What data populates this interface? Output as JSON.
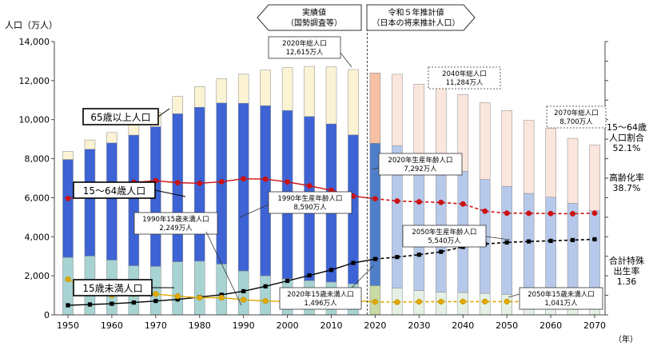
{
  "chart_data": {
    "type": "bar",
    "x": [
      1950,
      1955,
      1960,
      1965,
      1970,
      1975,
      1980,
      1985,
      1990,
      1995,
      2000,
      2005,
      2010,
      2015,
      2020,
      2025,
      2030,
      2035,
      2040,
      2045,
      2050,
      2055,
      2060,
      2065,
      2070
    ],
    "split_year": 2020,
    "series": [
      {
        "name": "15歳未満人口",
        "values": [
          2943,
          3012,
          2807,
          2517,
          2482,
          2722,
          2751,
          2603,
          2249,
          2001,
          1847,
          1752,
          1680,
          1589,
          1496,
          1363,
          1240,
          1169,
          1142,
          1103,
          1041,
          996,
          951,
          906,
          798
        ]
      },
      {
        "name": "15～64歳人口",
        "values": [
          5017,
          5473,
          6000,
          6693,
          7157,
          7581,
          7883,
          8251,
          8590,
          8716,
          8622,
          8409,
          8103,
          7629,
          7292,
          7310,
          6875,
          6722,
          6213,
          5832,
          5540,
          5225,
          5078,
          4808,
          4535
        ]
      },
      {
        "name": "65歳以上人口",
        "values": [
          411,
          475,
          535,
          624,
          739,
          887,
          1065,
          1247,
          1489,
          1826,
          2204,
          2567,
          2925,
          3347,
          3603,
          3653,
          3696,
          3773,
          3929,
          3945,
          3888,
          3744,
          3540,
          3330,
          3367
        ]
      }
    ],
    "lines": [
      {
        "name": "高齢化率",
        "values": [
          4.9,
          5.3,
          5.7,
          6.3,
          7.1,
          7.9,
          9.1,
          10.3,
          12.1,
          14.6,
          17.4,
          20.2,
          23.0,
          26.6,
          28.6,
          29.6,
          30.8,
          32.3,
          34.8,
          36.3,
          37.1,
          37.6,
          37.9,
          38.3,
          38.7
        ]
      },
      {
        "name": "15～64歳人口割合",
        "values": [
          59.6,
          61.3,
          64.2,
          67.9,
          68.7,
          67.7,
          67.4,
          68.2,
          69.7,
          69.5,
          68.1,
          66.1,
          63.8,
          60.8,
          59.5,
          58.3,
          57.9,
          57.6,
          56.8,
          53.1,
          52.1,
          52.0,
          51.9,
          51.8,
          52.1
        ]
      },
      {
        "name": "合計特殊出生率",
        "values": [
          3.65,
          2.37,
          2.0,
          2.14,
          2.13,
          1.91,
          1.75,
          1.76,
          1.54,
          1.42,
          1.36,
          1.26,
          1.39,
          1.45,
          1.33,
          1.3,
          1.34,
          1.35,
          1.36,
          1.36,
          1.36,
          1.36,
          1.36,
          1.36,
          1.36
        ]
      }
    ],
    "ylabel": "人口（万人）",
    "ylim": [
      0,
      14000
    ],
    "yticks": [
      "0",
      "2,000",
      "4,000",
      "6,000",
      "8,000",
      "10,000",
      "12,000",
      "14,000"
    ],
    "xticks": [
      "1950",
      "1960",
      "1970",
      "1980",
      "1990",
      "2000",
      "2010",
      "2020",
      "2030",
      "2040",
      "2050",
      "2060",
      "2070"
    ],
    "xunit": "（年）",
    "right_axis_range": [
      0,
      140
    ],
    "grid": false,
    "header_left": [
      "実績値",
      "（国勢調査等）"
    ],
    "header_right": [
      "令和５年推計値",
      "（日本の将来推計人口）"
    ],
    "legend_boxes": [
      "65歳以上人口",
      "15～64歳人口",
      "15歳未満人口"
    ],
    "right_labels": {
      "ratio_1564": [
        "15～64歳",
        "人口割合",
        "52.1%"
      ],
      "aging": [
        "高齢化率",
        "38.7%"
      ],
      "fertility": [
        "合計特殊",
        "出生率",
        "1.36"
      ]
    },
    "callouts": {
      "total2020": [
        "2020年総人口",
        "12,615万人"
      ],
      "total2040": [
        "2040年総人口",
        "11,284万人"
      ],
      "total2070": [
        "2070年総人口",
        "8,700万人"
      ],
      "working2020": [
        "2020年生産年齢人口",
        "7,292万人"
      ],
      "working1990": [
        "1990年生産年齢人口",
        "8,590万人"
      ],
      "child1990": [
        "1990年15歳未満人口",
        "2,249万人"
      ],
      "working2050": [
        "2050年生産年齢人口",
        "5,540万人"
      ],
      "child2020": [
        "2020年15歳未満人口",
        "1,496万人"
      ],
      "child2050": [
        "2050年15歳未満人口",
        "1,041万人"
      ]
    },
    "colors": {
      "child": "#a8d3d3",
      "working": "#3d63d4",
      "elder": "#fbf3d4",
      "child_future": "#e6f1e6",
      "working_future": "#b7c9ea",
      "elder_future": "#fbe6dd",
      "child_2020": "#c8dba4",
      "working_2020": "#4f7fc9",
      "elder_2020": "#f5c0a4",
      "aging_line": "#000000",
      "ratio_line": "#cc1111",
      "fertility_line": "#e0a800"
    }
  }
}
